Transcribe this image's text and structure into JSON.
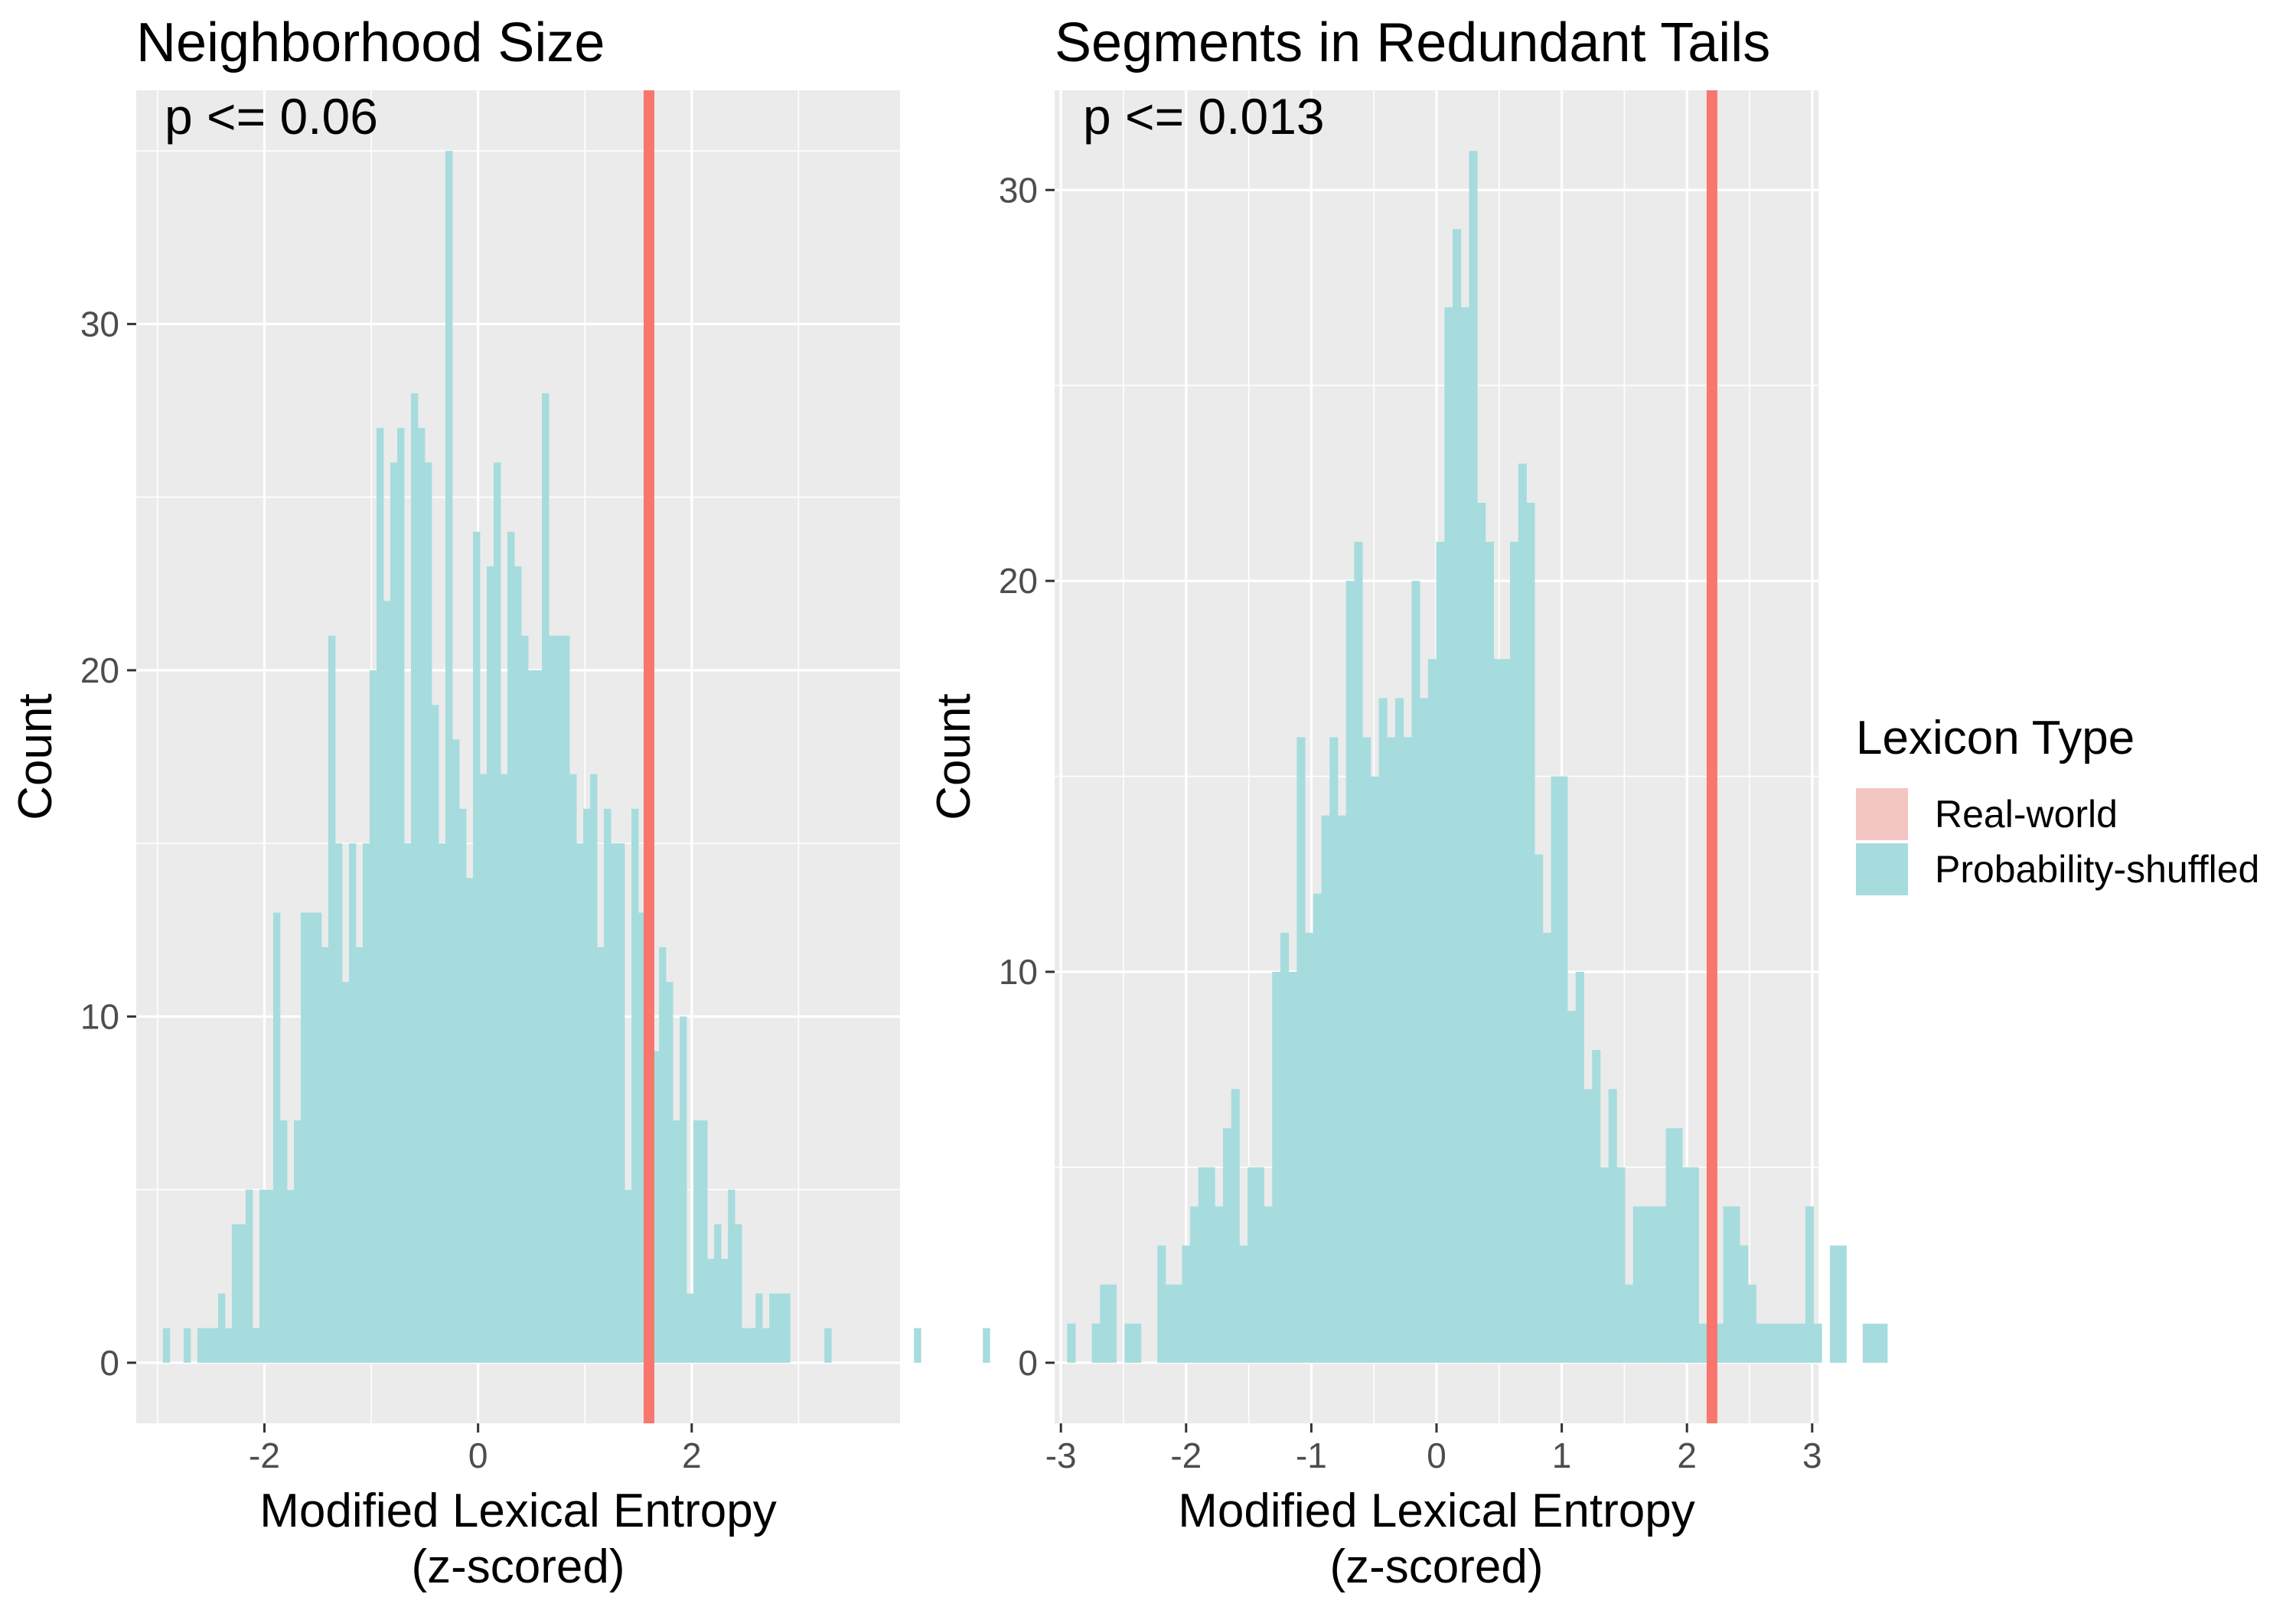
{
  "chart_data": [
    {
      "type": "bar",
      "title": "Neighborhood Size",
      "annotation": "p <= 0.06",
      "xlabel_lines": [
        "Modified Lexical Entropy",
        "(z-scored)"
      ],
      "ylabel": "Count",
      "xlim": [
        -3.2,
        3.95
      ],
      "ylim": [
        -1.75,
        36.75
      ],
      "xticks": [
        -2,
        0,
        2
      ],
      "xtick_labels": [
        "-2",
        "0",
        "2"
      ],
      "yticks": [
        0,
        10,
        20,
        30
      ],
      "ytick_labels": [
        "0",
        "10",
        "20",
        "30"
      ],
      "bin_start": -2.95,
      "bin_width": 0.0645,
      "counts": [
        1,
        0,
        0,
        1,
        0,
        1,
        1,
        1,
        2,
        1,
        4,
        4,
        5,
        1,
        5,
        5,
        13,
        7,
        5,
        7,
        13,
        13,
        13,
        12,
        21,
        15,
        11,
        15,
        12,
        15,
        20,
        27,
        22,
        26,
        27,
        15,
        28,
        27,
        26,
        19,
        15,
        35,
        18,
        16,
        14,
        24,
        17,
        23,
        26,
        17,
        24,
        23,
        21,
        20,
        20,
        28,
        21,
        21,
        21,
        17,
        15,
        16,
        17,
        12,
        16,
        15,
        15,
        5,
        16,
        13,
        13,
        9,
        12,
        11,
        7,
        10,
        2,
        7,
        7,
        3,
        4,
        3,
        5,
        4,
        1,
        1,
        2,
        1,
        2,
        2,
        2,
        0,
        0,
        0,
        0,
        0,
        1,
        0,
        0,
        0,
        0,
        0,
        0,
        0,
        0,
        0,
        0,
        0,
        0,
        1,
        0,
        0,
        0,
        0,
        0,
        0,
        0,
        0,
        0,
        1
      ],
      "real_world_value": 1.6,
      "fill_color": "#a6dcdd",
      "line_color": "#f8766d"
    },
    {
      "type": "bar",
      "title": "Segments in Redundant Tails",
      "annotation": "p <= 0.013",
      "xlabel_lines": [
        "Modified Lexical Entropy",
        "(z-scored)"
      ],
      "ylabel": "Count",
      "xlim": [
        -3.05,
        3.05
      ],
      "ylim": [
        -1.55,
        32.55
      ],
      "xticks": [
        -3,
        -2,
        -1,
        0,
        1,
        2,
        3
      ],
      "xtick_labels": [
        "-3",
        "-2",
        "-1",
        "0",
        "1",
        "2",
        "3"
      ],
      "yticks": [
        0,
        10,
        20,
        30
      ],
      "ytick_labels": [
        "0",
        "10",
        "20",
        "30"
      ],
      "bin_start": -2.95,
      "bin_width": 0.0655,
      "counts": [
        1,
        0,
        0,
        1,
        2,
        2,
        0,
        1,
        1,
        0,
        0,
        3,
        2,
        2,
        3,
        4,
        5,
        5,
        4,
        6,
        7,
        3,
        5,
        5,
        4,
        10,
        11,
        10,
        16,
        11,
        12,
        14,
        16,
        14,
        20,
        21,
        16,
        15,
        17,
        16,
        17,
        16,
        20,
        17,
        18,
        21,
        27,
        29,
        27,
        31,
        22,
        21,
        18,
        18,
        21,
        23,
        22,
        13,
        11,
        15,
        15,
        9,
        10,
        7,
        8,
        5,
        7,
        5,
        2,
        4,
        4,
        4,
        4,
        6,
        6,
        5,
        5,
        1,
        1,
        1,
        4,
        4,
        3,
        2,
        1,
        1,
        1,
        1,
        1,
        1,
        4,
        1,
        0,
        3,
        3,
        0,
        0,
        1,
        1,
        1
      ],
      "real_world_value": 2.2,
      "fill_color": "#a6dcdd",
      "line_color": "#f8766d"
    }
  ],
  "legend": {
    "title": "Lexicon Type",
    "items": [
      {
        "label": "Real-world",
        "color": "#f4c6c2"
      },
      {
        "label": "Probability-shuffled",
        "color": "#a6dcdd"
      }
    ]
  }
}
